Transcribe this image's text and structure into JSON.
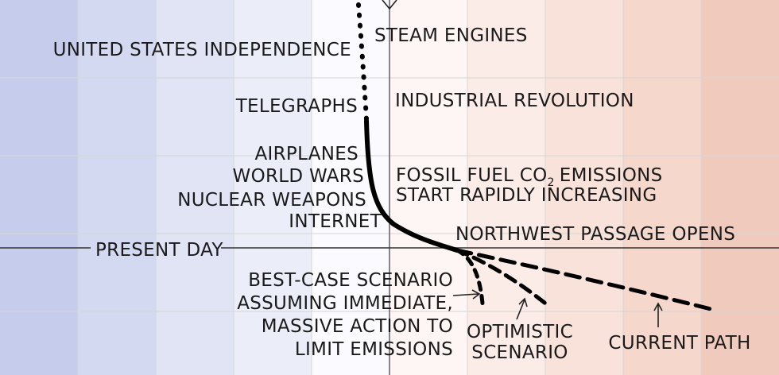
{
  "chart_data": {
    "type": "line",
    "title": "",
    "xlabel": "",
    "ylabel": "",
    "x_axis": {
      "bands": 10,
      "grid": true
    },
    "colors": {
      "bands": [
        "#c6cdec",
        "#d3d9f1",
        "#e0e4f5",
        "#ebeef9",
        "#fafaff",
        "#fdf6f4",
        "#fbece7",
        "#f8e2da",
        "#f5d7cc",
        "#f0cbbd"
      ],
      "grid": "#d6d6d6",
      "axis": "#1a1a1a",
      "line": "#000000"
    },
    "events_left": [
      {
        "id": "independence",
        "text": "UNITED STATES INDEPENDENCE"
      },
      {
        "id": "telegraphs",
        "text": "TELEGRAPHS"
      },
      {
        "id": "airplanes",
        "text": "AIRPLANES"
      },
      {
        "id": "world-wars",
        "text": "WORLD WARS"
      },
      {
        "id": "nuclear",
        "text": "NUCLEAR WEAPONS"
      },
      {
        "id": "internet",
        "text": "INTERNET"
      }
    ],
    "events_right": [
      {
        "id": "steam",
        "text": "STEAM ENGINES"
      },
      {
        "id": "industrial",
        "text": "INDUSTRIAL REVOLUTION"
      },
      {
        "id": "fossil-1",
        "text": "FOSSIL FUEL CO"
      },
      {
        "id": "fossil-2",
        "text": "START RAPIDLY INCREASING"
      },
      {
        "id": "northwest",
        "text": "NORTHWEST PASSAGE OPENS"
      }
    ],
    "fossil_subscript": "2",
    "fossil_suffix": "EMISSIONS",
    "present_day": "PRESENT DAY",
    "scenarios": [
      {
        "id": "best-case",
        "lines": [
          "BEST-CASE SCENARIO",
          "ASSUMING IMMEDIATE,",
          "MASSIVE ACTION TO",
          "LIMIT EMISSIONS"
        ]
      },
      {
        "id": "optimistic",
        "lines": [
          "OPTIMISTIC",
          "SCENARIO"
        ]
      },
      {
        "id": "current",
        "lines": [
          "CURRENT PATH"
        ]
      }
    ]
  }
}
